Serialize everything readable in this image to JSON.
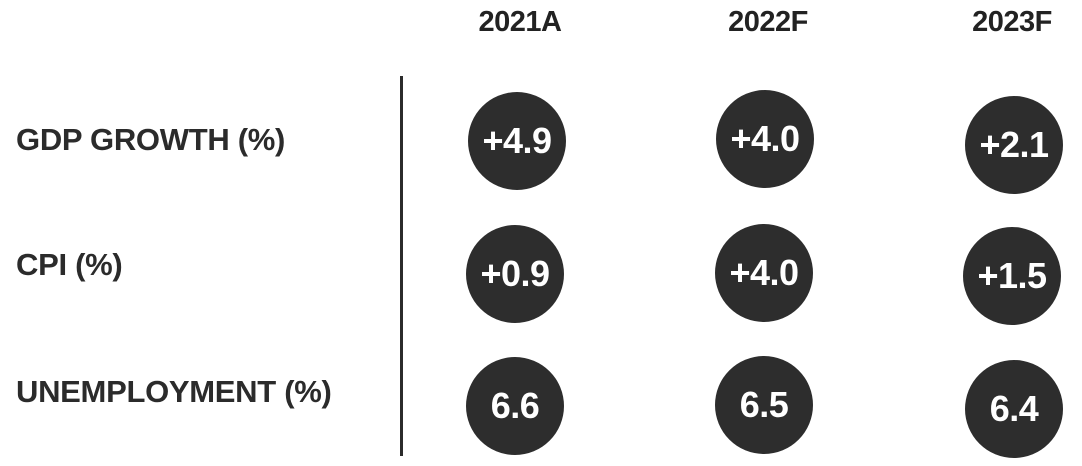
{
  "chart_data": {
    "type": "table",
    "columns": [
      "2021A",
      "2022F",
      "2023F"
    ],
    "rows": [
      {
        "label": "GDP GROWTH (%)",
        "values": [
          "+4.9",
          "+4.0",
          "+2.1"
        ]
      },
      {
        "label": "CPI (%)",
        "values": [
          "+0.9",
          "+4.0",
          "+1.5"
        ]
      },
      {
        "label": "UNEMPLOYMENT (%)",
        "values": [
          "6.6",
          "6.5",
          "6.4"
        ]
      }
    ],
    "colors": {
      "bubble": "#2d2d2d",
      "bubble_text": "#ffffff",
      "label_text": "#2b2b2b"
    }
  }
}
